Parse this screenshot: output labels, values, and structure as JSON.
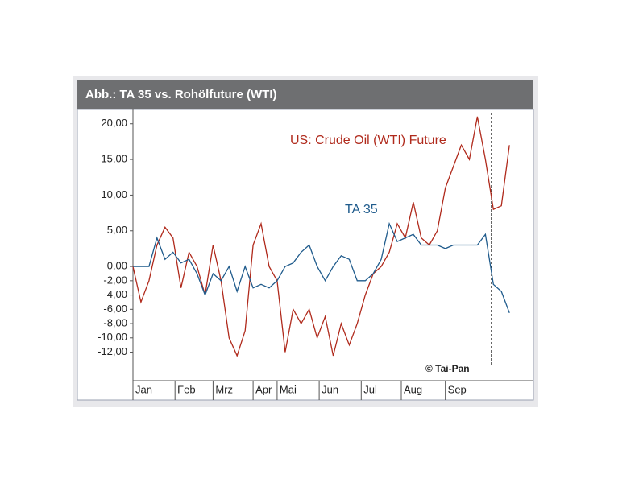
{
  "chart_data": {
    "type": "line",
    "title": "Abb.: TA 35 vs. Rohölfuture (WTI)",
    "source": "© Tai-Pan",
    "x": [
      0,
      2,
      4,
      6,
      8,
      10,
      12,
      14,
      16,
      18,
      20,
      22,
      24,
      26,
      28,
      30,
      32,
      34,
      36,
      38,
      40,
      42,
      44,
      46,
      48,
      50,
      52,
      54,
      56,
      58,
      60,
      62,
      64,
      66,
      68,
      70,
      72,
      74,
      76,
      78,
      80,
      82,
      84,
      86,
      88,
      90,
      92,
      94
    ],
    "xlim": [
      0,
      100
    ],
    "xticks": [
      {
        "value": 0,
        "label": "Jan"
      },
      {
        "value": 10.5,
        "label": "Feb"
      },
      {
        "value": 20,
        "label": "Mrz"
      },
      {
        "value": 30,
        "label": "Apr"
      },
      {
        "value": 36,
        "label": "Mai"
      },
      {
        "value": 46.5,
        "label": "Jun"
      },
      {
        "value": 57,
        "label": "Jul"
      },
      {
        "value": 67,
        "label": "Aug"
      },
      {
        "value": 78,
        "label": "Sep"
      }
    ],
    "vline": 89.5,
    "ylim": [
      -16,
      22
    ],
    "yticks": [
      {
        "value": 20,
        "label": "20,00"
      },
      {
        "value": 15,
        "label": "15,00"
      },
      {
        "value": 10,
        "label": "10,00"
      },
      {
        "value": 5,
        "label": "5,00"
      },
      {
        "value": 0,
        "label": "0,00"
      },
      {
        "value": -2,
        "label": "-2,00"
      },
      {
        "value": -4,
        "label": "-4,00"
      },
      {
        "value": -6,
        "label": "-6,00"
      },
      {
        "value": -8,
        "label": "-8,00"
      },
      {
        "value": -10,
        "label": "-10,00"
      },
      {
        "value": -12,
        "label": "-12,00"
      }
    ],
    "series": [
      {
        "name": "US: Crude Oil (WTI) Future",
        "color": "#b02a1c",
        "values": [
          0,
          -5,
          -2,
          3,
          5.5,
          4,
          -3,
          2,
          0,
          -4,
          3,
          -2,
          -10,
          -12.5,
          -9,
          3,
          6,
          0,
          -2,
          -12,
          -6,
          -8,
          -6,
          -10,
          -7,
          -12.5,
          -8,
          -11,
          -8,
          -4,
          -1,
          0,
          2,
          6,
          4,
          9,
          4,
          3,
          5,
          11,
          14,
          17,
          15,
          21,
          15,
          8,
          8.5,
          17
        ]
      },
      {
        "name": "TA 35",
        "color": "#1f5b8c",
        "values": [
          0,
          0,
          0,
          4,
          1,
          2,
          0.5,
          1,
          -1,
          -4,
          -1,
          -2,
          0,
          -3.5,
          0,
          -3,
          -2.5,
          -3,
          -2,
          0,
          0.5,
          2,
          3,
          0,
          -2,
          0,
          1.5,
          1,
          -2,
          -2,
          -1,
          1,
          6,
          3.5,
          4,
          4.5,
          3,
          3,
          3,
          2.5,
          3,
          3,
          3,
          3,
          4.5,
          -2.5,
          -3.5,
          -6.5
        ]
      }
    ]
  }
}
